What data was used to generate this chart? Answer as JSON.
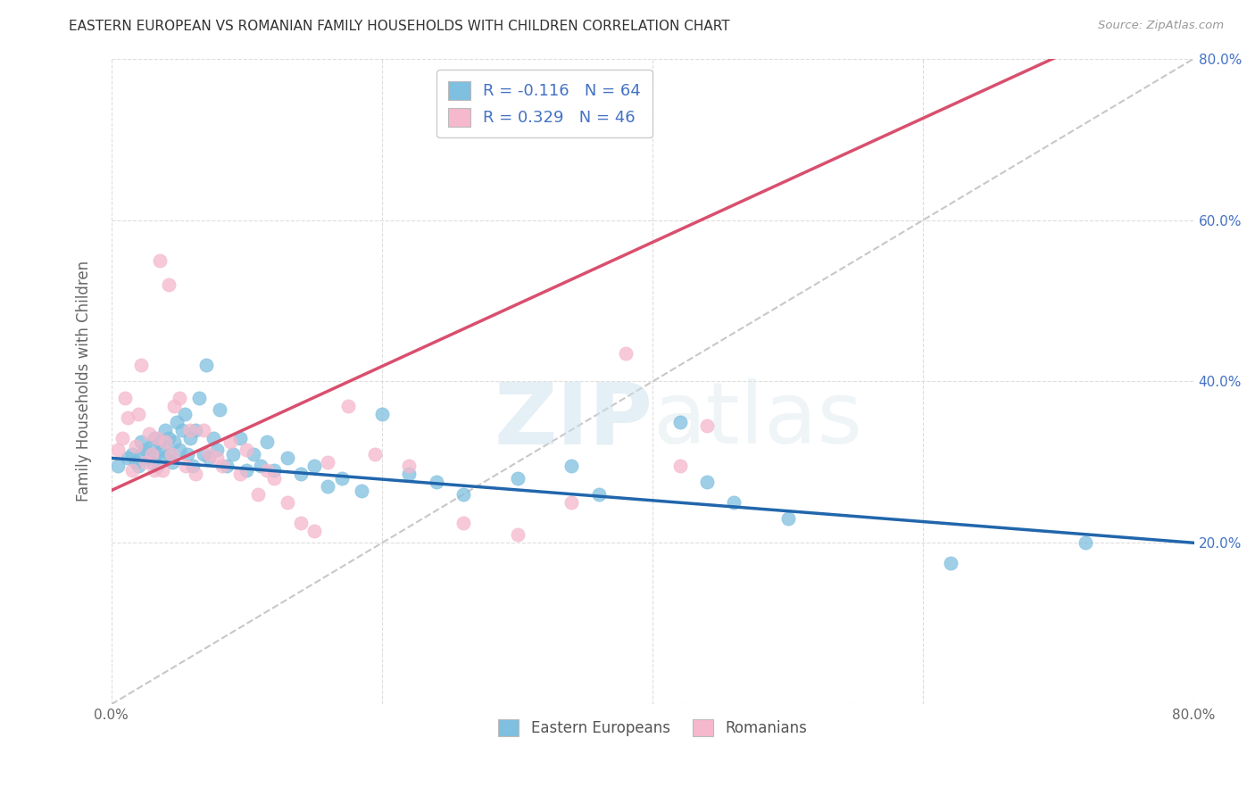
{
  "title": "EASTERN EUROPEAN VS ROMANIAN FAMILY HOUSEHOLDS WITH CHILDREN CORRELATION CHART",
  "source": "Source: ZipAtlas.com",
  "ylabel": "Family Households with Children",
  "xlim": [
    0.0,
    0.8
  ],
  "ylim": [
    0.0,
    0.8
  ],
  "blue_color": "#7fbfdf",
  "pink_color": "#f5b8cc",
  "blue_line_color": "#2166ac",
  "pink_line_color": "#d94f6e",
  "dashed_line_color": "#c8c8c8",
  "legend_label1": "R = -0.116   N = 64",
  "legend_label2": "R = 0.329   N = 46",
  "legend_text_color": "#4472c4",
  "watermark": "ZIPatlas",
  "ytick_color": "#4472c4",
  "blue_scatter_x": [
    0.005,
    0.012,
    0.015,
    0.018,
    0.02,
    0.022,
    0.022,
    0.025,
    0.028,
    0.03,
    0.03,
    0.032,
    0.033,
    0.034,
    0.036,
    0.038,
    0.04,
    0.04,
    0.042,
    0.043,
    0.045,
    0.046,
    0.048,
    0.05,
    0.052,
    0.054,
    0.056,
    0.058,
    0.06,
    0.062,
    0.065,
    0.068,
    0.07,
    0.072,
    0.075,
    0.078,
    0.08,
    0.085,
    0.09,
    0.095,
    0.1,
    0.105,
    0.11,
    0.115,
    0.12,
    0.13,
    0.14,
    0.15,
    0.16,
    0.17,
    0.185,
    0.2,
    0.22,
    0.24,
    0.26,
    0.3,
    0.34,
    0.36,
    0.42,
    0.44,
    0.46,
    0.5,
    0.62,
    0.72
  ],
  "blue_scatter_y": [
    0.295,
    0.305,
    0.31,
    0.3,
    0.295,
    0.31,
    0.325,
    0.315,
    0.305,
    0.3,
    0.32,
    0.33,
    0.31,
    0.295,
    0.325,
    0.315,
    0.305,
    0.34,
    0.33,
    0.31,
    0.3,
    0.325,
    0.35,
    0.315,
    0.34,
    0.36,
    0.31,
    0.33,
    0.295,
    0.34,
    0.38,
    0.31,
    0.42,
    0.305,
    0.33,
    0.315,
    0.365,
    0.295,
    0.31,
    0.33,
    0.29,
    0.31,
    0.295,
    0.325,
    0.29,
    0.305,
    0.285,
    0.295,
    0.27,
    0.28,
    0.265,
    0.36,
    0.285,
    0.275,
    0.26,
    0.28,
    0.295,
    0.26,
    0.35,
    0.275,
    0.25,
    0.23,
    0.175,
    0.2
  ],
  "pink_scatter_x": [
    0.005,
    0.008,
    0.01,
    0.012,
    0.015,
    0.018,
    0.02,
    0.022,
    0.025,
    0.028,
    0.03,
    0.032,
    0.034,
    0.036,
    0.038,
    0.04,
    0.042,
    0.044,
    0.046,
    0.05,
    0.055,
    0.058,
    0.062,
    0.068,
    0.072,
    0.078,
    0.082,
    0.088,
    0.095,
    0.1,
    0.108,
    0.115,
    0.12,
    0.13,
    0.14,
    0.15,
    0.16,
    0.175,
    0.195,
    0.22,
    0.26,
    0.3,
    0.34,
    0.38,
    0.42,
    0.44
  ],
  "pink_scatter_y": [
    0.315,
    0.33,
    0.38,
    0.355,
    0.29,
    0.32,
    0.36,
    0.42,
    0.3,
    0.335,
    0.31,
    0.29,
    0.33,
    0.55,
    0.29,
    0.325,
    0.52,
    0.31,
    0.37,
    0.38,
    0.295,
    0.34,
    0.285,
    0.34,
    0.31,
    0.305,
    0.295,
    0.325,
    0.285,
    0.315,
    0.26,
    0.29,
    0.28,
    0.25,
    0.225,
    0.215,
    0.3,
    0.37,
    0.31,
    0.295,
    0.225,
    0.21,
    0.25,
    0.435,
    0.295,
    0.345
  ],
  "blue_trend": [
    0.0,
    0.8,
    0.305,
    0.2
  ],
  "pink_trend": [
    0.0,
    0.8,
    0.265,
    0.88
  ],
  "dashed_trend": [
    0.0,
    0.8,
    0.0,
    0.8
  ]
}
